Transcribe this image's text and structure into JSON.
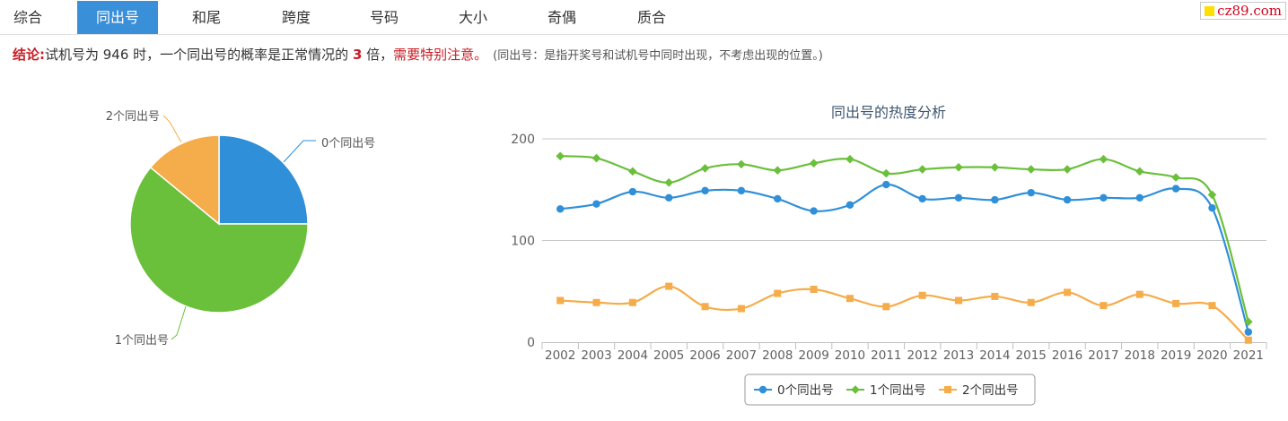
{
  "tabs": [
    {
      "label": "综合",
      "active": false
    },
    {
      "label": "同出号",
      "active": true
    },
    {
      "label": "和尾",
      "active": false
    },
    {
      "label": "跨度",
      "active": false
    },
    {
      "label": "号码",
      "active": false
    },
    {
      "label": "大小",
      "active": false
    },
    {
      "label": "奇偶",
      "active": false
    },
    {
      "label": "质合",
      "active": false
    }
  ],
  "logo": {
    "text": "cz89.com"
  },
  "conclusion": {
    "lead": "结论:",
    "text1": "试机号为 946 时，一个同出号的概率是正常情况的 ",
    "multiple": "3",
    "text2": " 倍，",
    "warning": "需要特别注意。",
    "note": "(同出号：是指开奖号和试机号中同时出现，不考虑出现的位置。)"
  },
  "colors": {
    "series0": "#2f8fd8",
    "series1": "#6abf3b",
    "series2": "#f5ac4a",
    "tab_active": "#3a8fd9"
  },
  "chart_data": [
    {
      "type": "pie",
      "labels": [
        "0个同出号",
        "1个同出号",
        "2个同出号"
      ],
      "values": [
        25,
        61,
        14
      ]
    },
    {
      "type": "line",
      "title": "同出号的热度分析",
      "categories": [
        "2002",
        "2003",
        "2004",
        "2005",
        "2006",
        "2007",
        "2008",
        "2009",
        "2010",
        "2011",
        "2012",
        "2013",
        "2014",
        "2015",
        "2016",
        "2017",
        "2018",
        "2019",
        "2020",
        "2021"
      ],
      "series": [
        {
          "name": "0个同出号",
          "values": [
            131,
            136,
            148,
            142,
            149,
            149,
            141,
            129,
            135,
            155,
            141,
            142,
            140,
            147,
            140,
            142,
            142,
            151,
            132,
            10
          ]
        },
        {
          "name": "1个同出号",
          "values": [
            183,
            181,
            168,
            157,
            171,
            175,
            169,
            176,
            180,
            166,
            170,
            172,
            172,
            170,
            170,
            180,
            168,
            162,
            145,
            20
          ]
        },
        {
          "name": "2个同出号",
          "values": [
            41,
            39,
            39,
            55,
            35,
            33,
            48,
            52,
            43,
            35,
            46,
            41,
            45,
            39,
            49,
            36,
            47,
            38,
            36,
            2
          ]
        }
      ],
      "ylim": [
        0,
        200
      ],
      "yticks": [
        0,
        100,
        200
      ],
      "grid": true,
      "legend": "bottom-center"
    }
  ]
}
